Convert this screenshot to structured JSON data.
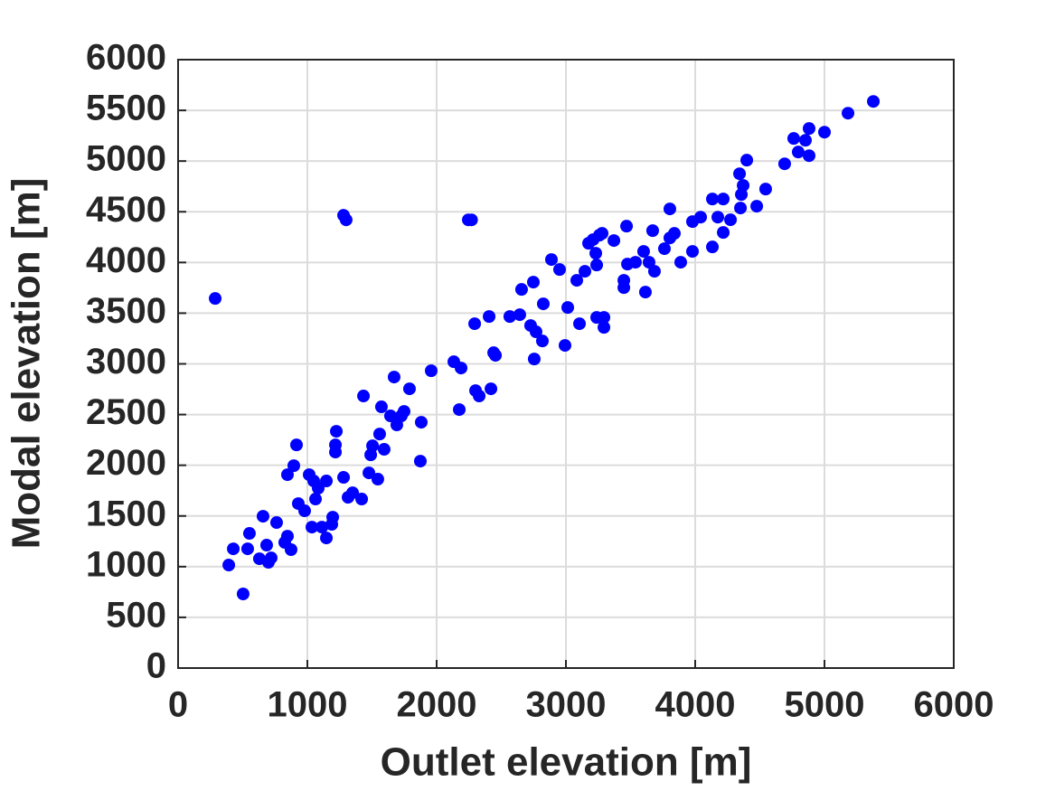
{
  "chart_data": {
    "type": "scatter",
    "x_label": "Outlet elevation [m]",
    "y_label": "Modal elevation [m]",
    "xlim": [
      0,
      6000
    ],
    "ylim": [
      0,
      6000
    ],
    "xticks": [
      0,
      1000,
      2000,
      3000,
      4000,
      5000,
      6000
    ],
    "yticks": [
      0,
      500,
      1000,
      1500,
      2000,
      2500,
      3000,
      3500,
      4000,
      4500,
      5000,
      5500,
      6000
    ],
    "grid": true,
    "color": "#0000ff",
    "x": [
      287,
      1280,
      1300,
      2245,
      2270,
      392,
      427,
      503,
      538,
      552,
      629,
      657,
      685,
      699,
      720,
      762,
      825,
      846,
      874,
      846,
      895,
      916,
      930,
      979,
      1014,
      1035,
      1049,
      1063,
      1084,
      1112,
      1147,
      1147,
      1189,
      1196,
      1217,
      1217,
      1224,
      1280,
      1315,
      1350,
      1420,
      1434,
      1476,
      1490,
      1504,
      1545,
      1559,
      1573,
      1594,
      1643,
      1671,
      1692,
      1727,
      1748,
      1790,
      1874,
      1881,
      1958,
      2133,
      2175,
      2189,
      2294,
      2301,
      2329,
      2406,
      2420,
      2441,
      2455,
      2566,
      2643,
      2657,
      2727,
      2748,
      2755,
      2769,
      2818,
      2825,
      2888,
      2951,
      2993,
      3014,
      3084,
      3105,
      3147,
      3175,
      3210,
      3231,
      3238,
      3238,
      3259,
      3280,
      3294,
      3294,
      3371,
      3448,
      3448,
      3469,
      3476,
      3538,
      3601,
      3615,
      3643,
      3671,
      3685,
      3762,
      3804,
      3804,
      3839,
      3888,
      3979,
      3979,
      4042,
      4133,
      4133,
      4175,
      4217,
      4217,
      4273,
      4343,
      4350,
      4357,
      4371,
      4399,
      4476,
      4545,
      4692,
      4762,
      4797,
      4853,
      4881,
      4881,
      5000,
      5182,
      5378
    ],
    "values": [
      3645,
      4465,
      4420,
      4420,
      4420,
      1016,
      1176,
      731,
      1176,
      1328,
      1078,
      1497,
      1212,
      1043,
      1087,
      1435,
      1239,
      1301,
      1168,
      1907,
      1996,
      2201,
      1622,
      1551,
      1907,
      1390,
      1845,
      1667,
      1774,
      1390,
      1845,
      1283,
      1417,
      1488,
      2130,
      2201,
      2335,
      1881,
      1684,
      1729,
      1667,
      2683,
      1925,
      2103,
      2192,
      1863,
      2308,
      2576,
      2157,
      2487,
      2870,
      2398,
      2487,
      2531,
      2754,
      2041,
      2424,
      2932,
      3021,
      2549,
      2959,
      3396,
      2736,
      2683,
      3467,
      2754,
      3110,
      3084,
      3467,
      3485,
      3734,
      3378,
      3806,
      3048,
      3316,
      3226,
      3592,
      4029,
      3930,
      3182,
      3556,
      3824,
      3396,
      3913,
      4189,
      4225,
      4091,
      3975,
      3458,
      4269,
      4287,
      3458,
      3360,
      4216,
      3752,
      3824,
      4358,
      3984,
      4002,
      4109,
      3708,
      4002,
      4314,
      3913,
      4136,
      4528,
      4242,
      4287,
      4002,
      4403,
      4109,
      4447,
      4153,
      4626,
      4447,
      4296,
      4626,
      4421,
      4875,
      4537,
      4670,
      4760,
      5009,
      4555,
      4724,
      4973,
      5223,
      5089,
      5205,
      5321,
      5053,
      5285,
      5472,
      5588
    ]
  }
}
